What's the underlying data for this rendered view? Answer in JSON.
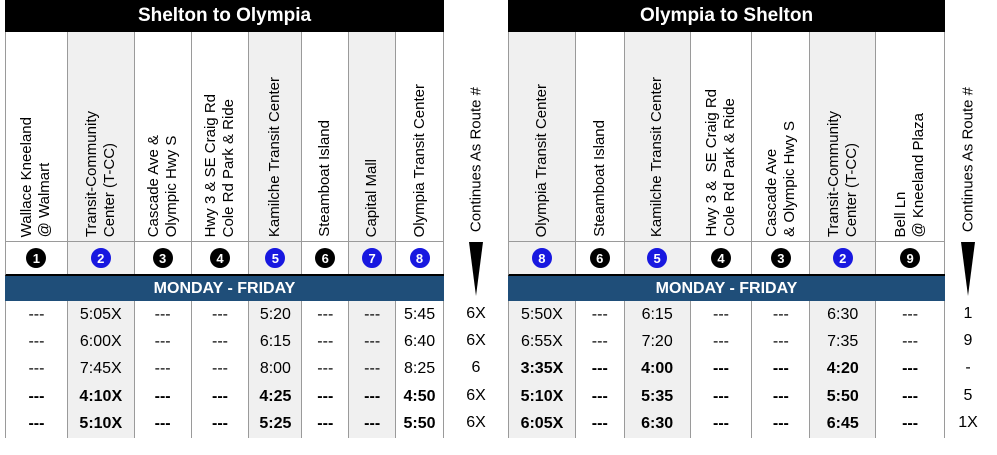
{
  "left": {
    "title": "Shelton to Olympia",
    "day_label": "MONDAY - FRIDAY",
    "columns": [
      {
        "label": "Wallace Kneeland\n@ Walmart",
        "num": "1",
        "color": "black",
        "shade": false
      },
      {
        "label": "Transit-Community\nCenter (T-CC)",
        "num": "2",
        "color": "blue",
        "shade": true
      },
      {
        "label": "Cascade Ave &\nOlympic Hwy S",
        "num": "3",
        "color": "black",
        "shade": false
      },
      {
        "label": "Hwy 3 & SE Craig Rd\nCole Rd Park & Ride",
        "num": "4",
        "color": "black",
        "shade": false
      },
      {
        "label": "Kamilche Transit Center",
        "num": "5",
        "color": "blue",
        "shade": true
      },
      {
        "label": "Steamboat Island",
        "num": "6",
        "color": "black",
        "shade": false
      },
      {
        "label": "Capital Mall",
        "num": "7",
        "color": "blue",
        "shade": true
      },
      {
        "label": "Olympia Transit Center",
        "num": "8",
        "color": "blue",
        "shade": false
      }
    ],
    "route_header": "Continues As Route #",
    "rows": [
      {
        "bold": false,
        "cells": [
          "---",
          "5:05X",
          "---",
          "---",
          "5:20",
          "---",
          "---",
          "5:45"
        ],
        "route": "6X"
      },
      {
        "bold": false,
        "cells": [
          "---",
          "6:00X",
          "---",
          "---",
          "6:15",
          "---",
          "---",
          "6:40"
        ],
        "route": "6X"
      },
      {
        "bold": false,
        "cells": [
          "---",
          "7:45X",
          "---",
          "---",
          "8:00",
          "---",
          "---",
          "8:25"
        ],
        "route": "6"
      },
      {
        "bold": true,
        "cells": [
          "---",
          "4:10X",
          "---",
          "---",
          "4:25",
          "---",
          "---",
          "4:50"
        ],
        "route": "6X"
      },
      {
        "bold": true,
        "cells": [
          "---",
          "5:10X",
          "---",
          "---",
          "5:25",
          "---",
          "---",
          "5:50"
        ],
        "route": "6X"
      }
    ]
  },
  "right": {
    "title": "Olympia to Shelton",
    "day_label": "MONDAY - FRIDAY",
    "columns": [
      {
        "label": "Olympia Transit Center",
        "num": "8",
        "color": "blue",
        "shade": true
      },
      {
        "label": "Steamboat Island",
        "num": "6",
        "color": "black",
        "shade": false
      },
      {
        "label": "Kamilche Transit Center",
        "num": "5",
        "color": "blue",
        "shade": true
      },
      {
        "label": "Hwy 3 &  SE Craig Rd\nCole Rd Park & Ride",
        "num": "4",
        "color": "black",
        "shade": false
      },
      {
        "label": "Cascade Ave\n& Olympic Hwy S",
        "num": "3",
        "color": "black",
        "shade": false
      },
      {
        "label": "Transit-Community\nCenter (T-CC)",
        "num": "2",
        "color": "blue",
        "shade": true
      },
      {
        "label": "Bell Ln\n@ Kneeland Plaza",
        "num": "9",
        "color": "black",
        "shade": false
      }
    ],
    "route_header": "Continues As Route #",
    "rows": [
      {
        "bold": false,
        "cells": [
          "5:50X",
          "---",
          "6:15",
          "---",
          "---",
          "6:30",
          "---"
        ],
        "route": "1"
      },
      {
        "bold": false,
        "cells": [
          "6:55X",
          "---",
          "7:20",
          "---",
          "---",
          "7:35",
          "---"
        ],
        "route": "9"
      },
      {
        "bold": true,
        "cells": [
          "3:35X",
          "---",
          "4:00",
          "---",
          "---",
          "4:20",
          "---"
        ],
        "route": "-"
      },
      {
        "bold": true,
        "cells": [
          "5:10X",
          "---",
          "5:35",
          "---",
          "---",
          "5:50",
          "---"
        ],
        "route": "5"
      },
      {
        "bold": true,
        "cells": [
          "6:05X",
          "---",
          "6:30",
          "---",
          "---",
          "6:45",
          "---"
        ],
        "route": "1X"
      }
    ]
  }
}
